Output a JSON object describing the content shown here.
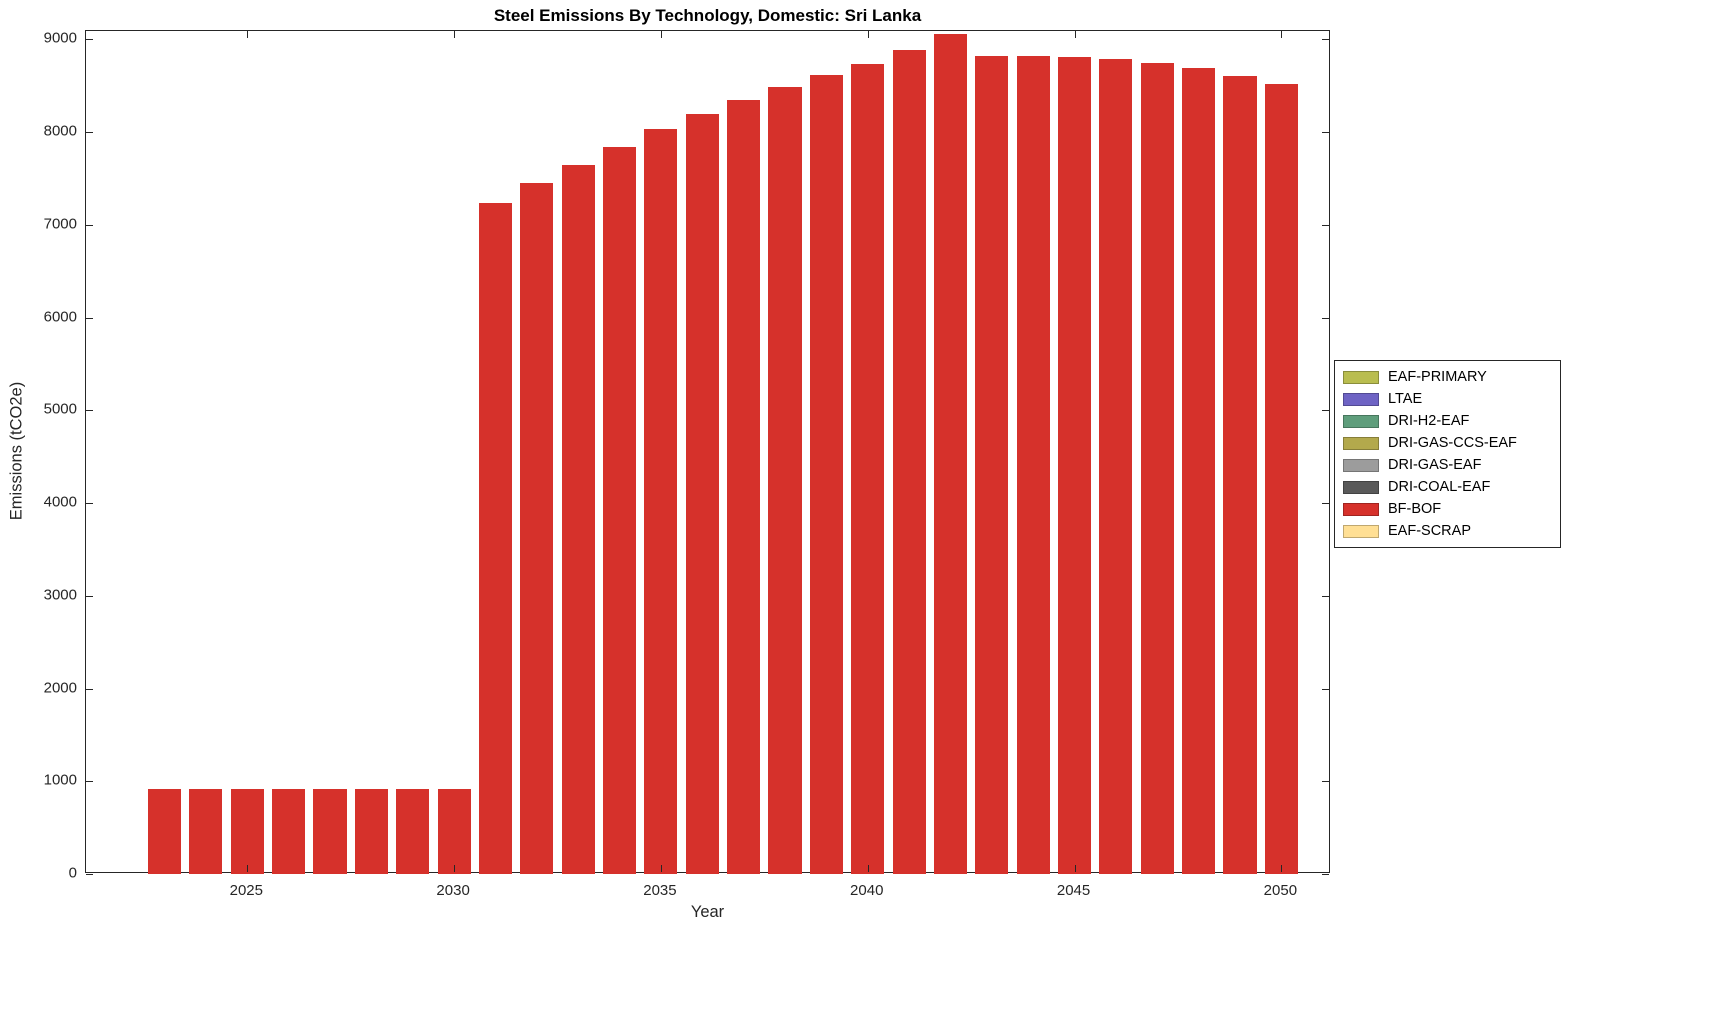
{
  "chart_data": {
    "type": "bar",
    "title": "Steel Emissions By Technology, Domestic: Sri Lanka",
    "xlabel": "Year",
    "ylabel": "Emissions (tCO2e)",
    "categories": [
      2023,
      2024,
      2025,
      2026,
      2027,
      2028,
      2029,
      2030,
      2031,
      2032,
      2033,
      2034,
      2035,
      2036,
      2037,
      2038,
      2039,
      2040,
      2041,
      2042,
      2043,
      2044,
      2045,
      2046,
      2047,
      2048,
      2049,
      2050
    ],
    "series": [
      {
        "name": "BF-BOF",
        "color": "#D6312B",
        "values": [
          920,
          920,
          920,
          920,
          920,
          920,
          920,
          920,
          7230,
          7450,
          7650,
          7840,
          8030,
          8200,
          8350,
          8490,
          8620,
          8730,
          8880,
          9060,
          8820,
          8820,
          8810,
          8790,
          8740,
          8690,
          8610,
          8520
        ]
      }
    ],
    "xlim": [
      2021.1,
      2051.2
    ],
    "ylim": [
      0,
      9090
    ],
    "xticks": [
      2025,
      2030,
      2035,
      2040,
      2045,
      2050
    ],
    "yticks": [
      0,
      1000,
      2000,
      3000,
      4000,
      5000,
      6000,
      7000,
      8000,
      9000
    ],
    "bar_width_years": 0.8,
    "grid": false,
    "legend": {
      "position": "right-outside",
      "entries": [
        {
          "label": "EAF-PRIMARY",
          "color": "#B9BD4F"
        },
        {
          "label": "LTAE",
          "color": "#6E63C4"
        },
        {
          "label": "DRI-H2-EAF",
          "color": "#5F9E7C"
        },
        {
          "label": "DRI-GAS-CCS-EAF",
          "color": "#B3A94C"
        },
        {
          "label": "DRI-GAS-EAF",
          "color": "#9C9C9C"
        },
        {
          "label": "DRI-COAL-EAF",
          "color": "#595959"
        },
        {
          "label": "BF-BOF",
          "color": "#D6312B"
        },
        {
          "label": "EAF-SCRAP",
          "color": "#FFDF94"
        }
      ]
    }
  }
}
